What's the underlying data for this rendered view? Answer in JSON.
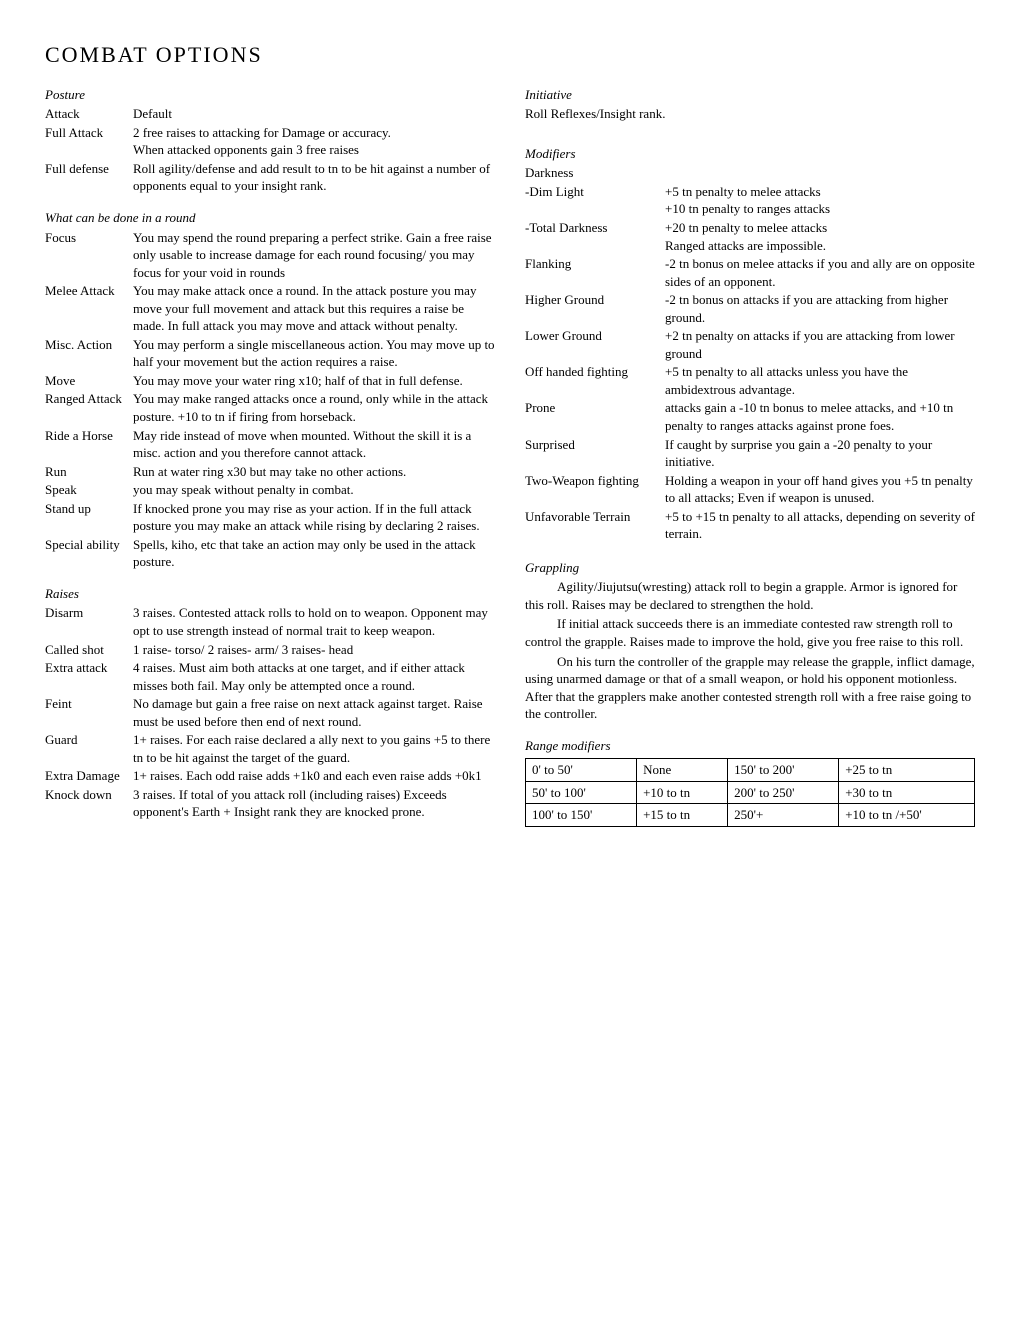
{
  "title": "COMBAT OPTIONS",
  "postureTitle": "Posture",
  "posture": [
    {
      "label": "Attack",
      "desc": "Default"
    },
    {
      "label": "Full Attack",
      "desc": "2 free raises to attacking for Damage or accuracy.\nWhen attacked opponents gain 3 free raises"
    },
    {
      "label": "Full defense",
      "desc": "Roll agility/defense and add result to tn to be hit against a number of opponents equal to your insight rank."
    }
  ],
  "roundTitle": "What can be done in a round",
  "round": [
    {
      "label": "Focus",
      "desc": "You may spend the round preparing a perfect strike. Gain a free raise only usable to increase damage for each round focusing/ you may focus for your void in rounds"
    },
    {
      "label": "Melee Attack",
      "desc": "You may make attack once a round. In the attack posture you may move your full movement and attack but this requires a raise be made. In full attack you may move and attack without penalty."
    },
    {
      "label": "Misc. Action",
      "desc": "You may perform a single miscellaneous action. You may move up to half your movement but the action requires a raise."
    },
    {
      "label": "Move",
      "desc": "You may move your water ring x10; half of that in full defense."
    },
    {
      "label": "Ranged Attack",
      "desc": "You may make ranged attacks once a round, only while in the attack posture. +10 to tn if firing from horseback."
    },
    {
      "label": "Ride a Horse",
      "desc": "May ride instead of move when mounted. Without the skill it is a misc. action and you therefore cannot attack."
    },
    {
      "label": "Run",
      "desc": "Run at water ring x30 but may take no other actions."
    },
    {
      "label": "Speak",
      "desc": "you may speak without penalty in combat."
    },
    {
      "label": "Stand up",
      "desc": "If knocked prone you may rise as your action. If in the full attack posture you may make an attack while rising by declaring 2 raises."
    },
    {
      "label": "Special ability",
      "desc": "Spells, kiho, etc that take an action may only be used in the attack posture."
    }
  ],
  "raisesTitle": "Raises",
  "raises": [
    {
      "label": "Disarm",
      "desc": "3 raises. Contested attack rolls to hold on to weapon. Opponent may opt to use strength instead of normal trait to keep weapon."
    },
    {
      "label": "Called shot",
      "desc": "1 raise- torso/ 2 raises- arm/ 3 raises- head"
    },
    {
      "label": "Extra attack",
      "desc": "4 raises. Must aim both attacks at one target, and if either attack misses both fail. May only be attempted once a round."
    },
    {
      "label": "Feint",
      "desc": "No damage but gain a free raise on next attack against target. Raise must be used before then end of next round."
    },
    {
      "label": "Guard",
      "desc": "1+ raises. For each raise declared a ally next to you gains +5 to there tn to be hit against the target of the guard."
    },
    {
      "label": "Extra Damage",
      "desc": "1+ raises. Each odd raise adds +1k0 and each even raise adds +0k1"
    },
    {
      "label": "Knock down",
      "desc": "3 raises. If total of you attack roll (including raises) Exceeds opponent's Earth + Insight rank they are knocked prone."
    }
  ],
  "initiativeTitle": "Initiative",
  "initiativeText": "Roll Reflexes/Insight rank.",
  "modifiersTitle": "Modifiers",
  "modifiers": [
    {
      "label": "Darkness",
      "desc": ""
    },
    {
      "label": "-Dim Light",
      "desc": "+5 tn penalty to melee attacks\n+10 tn penalty to ranges attacks"
    },
    {
      "label": "-Total Darkness",
      "desc": "+20 tn penalty to melee attacks\nRanged attacks are impossible."
    },
    {
      "label": "Flanking",
      "desc": "-2 tn bonus on melee attacks if you and ally are on opposite sides of an opponent."
    },
    {
      "label": "Higher Ground",
      "desc": "-2 tn bonus on attacks if you are attacking from higher ground."
    },
    {
      "label": "Lower Ground",
      "desc": "+2 tn penalty on attacks if you are attacking from lower ground"
    },
    {
      "label": "Off handed fighting",
      "desc": "+5 tn penalty to all attacks unless you have the ambidextrous advantage."
    },
    {
      "label": "Prone",
      "desc": "attacks gain a -10 tn bonus to melee attacks, and +10 tn penalty to ranges attacks against prone foes."
    },
    {
      "label": "Surprised",
      "desc": "If caught by surprise you gain a -20 penalty to your initiative."
    },
    {
      "label": "Two-Weapon fighting",
      "desc": "Holding a weapon in your off hand gives you +5 tn penalty to all attacks; Even if weapon is unused."
    },
    {
      "label": "Unfavorable Terrain",
      "desc": "+5 to +15 tn penalty to all attacks, depending on severity of terrain."
    }
  ],
  "grapplingTitle": "Grappling",
  "grappling": [
    "Agility/Jiujutsu(wresting) attack roll to begin a grapple. Armor is ignored for this roll. Raises may be declared to strengthen the hold.",
    "If initial attack succeeds there is an immediate contested raw strength roll to control the grapple. Raises made to improve the hold, give you free raise to this roll.",
    "On his turn the controller of the grapple may release the grapple, inflict damage, using unarmed damage or that of a small weapon, or hold his opponent motionless. After that the grapplers make another contested strength roll with a free raise going to the controller."
  ],
  "rangeTitle": "Range modifiers",
  "rangeTable": [
    [
      "0' to 50'",
      "None",
      "150' to 200'",
      "+25 to tn"
    ],
    [
      "50' to 100'",
      "+10 to tn",
      "200' to 250'",
      "+30 to tn"
    ],
    [
      "100' to 150'",
      "+15 to tn",
      "250'+",
      "+10 to tn /+50'"
    ]
  ]
}
